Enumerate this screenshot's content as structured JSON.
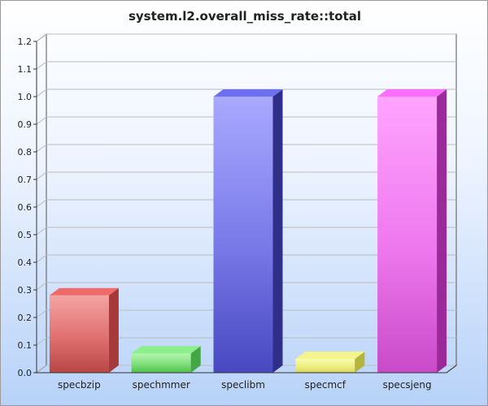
{
  "chart_data": {
    "type": "bar",
    "title": "system.l2.overall_miss_rate::total",
    "xlabel": "",
    "ylabel": "",
    "categories": [
      "specbzip",
      "spechmmer",
      "speclibm",
      "specmcf",
      "specsjeng"
    ],
    "values": [
      0.28,
      0.07,
      1.0,
      0.05,
      1.0
    ],
    "ylim": [
      0,
      1.2
    ],
    "yticks": [
      "0.0",
      "0.1",
      "0.2",
      "0.3",
      "0.4",
      "0.5",
      "0.6",
      "0.7",
      "0.8",
      "0.9",
      "1.0",
      "1.1",
      "1.2"
    ],
    "grid": true,
    "legend": "none",
    "style": "3d",
    "colors": [
      {
        "light": "#f4a3a3",
        "mid": "#e07070",
        "dark": "#b84646",
        "side": "#a63a3a",
        "top": "#f06a6a"
      },
      {
        "light": "#b6f4b0",
        "mid": "#7ee07a",
        "dark": "#4fc04c",
        "side": "#43a843",
        "top": "#8cf08a"
      },
      {
        "light": "#a9a9ff",
        "mid": "#7878e8",
        "dark": "#4848c0",
        "side": "#2f2f8a",
        "top": "#6f6ff2"
      },
      {
        "light": "#fbfbb0",
        "mid": "#eeee80",
        "dark": "#d6d65a",
        "side": "#b5b53c",
        "top": "#f4f48c"
      },
      {
        "light": "#ffa4ff",
        "mid": "#ee78ee",
        "dark": "#c84ac8",
        "side": "#9a2a9a",
        "top": "#ff6cff"
      }
    ]
  }
}
